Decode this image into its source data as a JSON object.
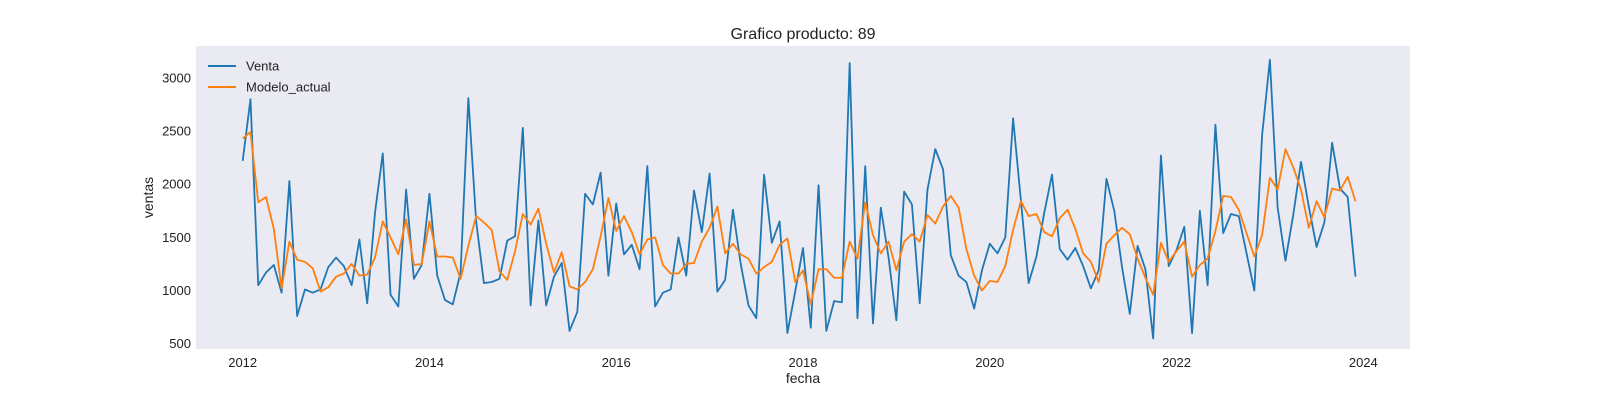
{
  "chart_data": {
    "type": "line",
    "title": "Grafico producto: 89",
    "xlabel": "fecha",
    "ylabel": "ventas",
    "xlim": [
      2011.5,
      2024.5
    ],
    "ylim": [
      450,
      3300
    ],
    "x_ticks": [
      2012,
      2014,
      2016,
      2018,
      2020,
      2022,
      2024
    ],
    "y_ticks": [
      500,
      1000,
      1500,
      2000,
      2500,
      3000
    ],
    "grid": false,
    "legend_position": "top-left",
    "x_start": 2012,
    "x_step": 0.08333,
    "series": [
      {
        "name": "Venta",
        "color": "#1f77b4",
        "values": [
          2220,
          2800,
          1050,
          1170,
          1240,
          980,
          2030,
          760,
          1010,
          980,
          1010,
          1220,
          1310,
          1230,
          1050,
          1480,
          880,
          1730,
          2290,
          960,
          850,
          1950,
          1110,
          1240,
          1910,
          1140,
          910,
          870,
          1170,
          2810,
          1650,
          1070,
          1080,
          1110,
          1470,
          1510,
          2530,
          860,
          1660,
          860,
          1130,
          1260,
          620,
          800,
          1910,
          1810,
          2110,
          1140,
          1820,
          1340,
          1430,
          1200,
          2170,
          850,
          980,
          1010,
          1500,
          1140,
          1940,
          1550,
          2100,
          990,
          1100,
          1760,
          1250,
          860,
          740,
          2090,
          1450,
          1650,
          600,
          990,
          1400,
          650,
          1990,
          620,
          900,
          890,
          3140,
          740,
          2170,
          690,
          1780,
          1310,
          720,
          1930,
          1810,
          880,
          1950,
          2330,
          2140,
          1330,
          1140,
          1080,
          830,
          1190,
          1440,
          1350,
          1500,
          2620,
          1850,
          1070,
          1320,
          1730,
          2090,
          1390,
          1290,
          1400,
          1230,
          1020,
          1190,
          2050,
          1750,
          1220,
          780,
          1420,
          1200,
          550,
          2270,
          1230,
          1380,
          1600,
          600,
          1750,
          1050,
          2560,
          1540,
          1720,
          1700,
          1350,
          1000,
          2460,
          3170,
          1780,
          1280,
          1710,
          2210,
          1790,
          1410,
          1640,
          2390,
          1960,
          1880,
          1130
        ]
      },
      {
        "name": "Modelo_actual",
        "color": "#ff7f0e",
        "values": [
          2430,
          2490,
          1830,
          1880,
          1580,
          1020,
          1460,
          1290,
          1270,
          1210,
          990,
          1030,
          1130,
          1160,
          1250,
          1140,
          1150,
          1310,
          1650,
          1500,
          1340,
          1670,
          1240,
          1250,
          1650,
          1320,
          1320,
          1310,
          1110,
          1420,
          1700,
          1640,
          1570,
          1180,
          1100,
          1370,
          1720,
          1620,
          1770,
          1440,
          1170,
          1360,
          1040,
          1010,
          1080,
          1200,
          1510,
          1870,
          1560,
          1700,
          1550,
          1340,
          1480,
          1500,
          1240,
          1160,
          1160,
          1250,
          1260,
          1460,
          1590,
          1790,
          1350,
          1440,
          1340,
          1300,
          1160,
          1220,
          1270,
          1430,
          1490,
          1080,
          1190,
          870,
          1200,
          1200,
          1120,
          1120,
          1460,
          1300,
          1830,
          1520,
          1350,
          1460,
          1190,
          1460,
          1530,
          1460,
          1710,
          1630,
          1790,
          1890,
          1780,
          1390,
          1140,
          1000,
          1090,
          1080,
          1230,
          1570,
          1840,
          1700,
          1720,
          1550,
          1510,
          1680,
          1760,
          1580,
          1350,
          1270,
          1080,
          1440,
          1520,
          1590,
          1530,
          1300,
          1120,
          960,
          1450,
          1270,
          1370,
          1460,
          1130,
          1240,
          1300,
          1560,
          1890,
          1880,
          1760,
          1540,
          1320,
          1520,
          2060,
          1950,
          2330,
          2160,
          1950,
          1590,
          1840,
          1690,
          1960,
          1940,
          2070,
          1840
        ]
      }
    ]
  }
}
